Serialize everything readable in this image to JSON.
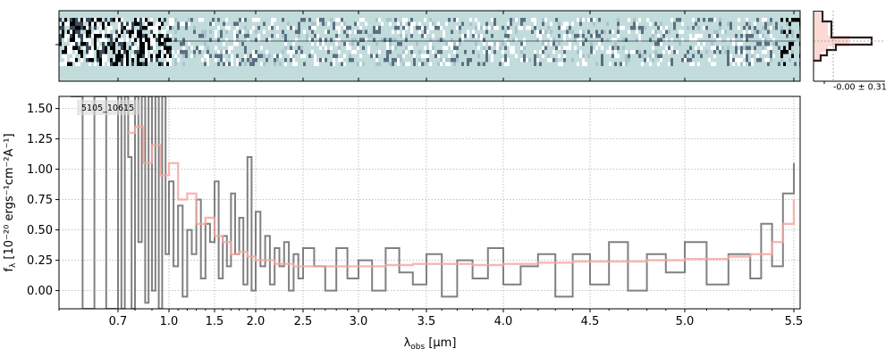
{
  "chart_data": [
    {
      "type": "heatmap",
      "panel": "2d-spectrum",
      "description_rows": 12,
      "background_color": "#c2dcdc",
      "trace_color": "#1a2a40",
      "xlim": [
        0.6,
        5.55
      ],
      "x_scale": "spectral-pixel",
      "noise_level": "high at blue end (x < 1.0 µm), moderate elsewhere"
    },
    {
      "type": "histogram",
      "panel": "profile",
      "annotation": "-0.00 ± 0.31",
      "line_color": "#2b1d1a",
      "fill_color": "#f8c0b8"
    },
    {
      "type": "line",
      "panel": "1d-spectrum",
      "legend_label": "5105_10615",
      "xlabel_main": "λ",
      "xlabel_sub": "obs",
      "xlabel_unit": " [μm]",
      "ylabel_main": "f",
      "ylabel_sub": "λ",
      "ylabel_unit": " [10⁻²⁰ ergs⁻¹cm⁻²A⁻¹]",
      "ylim": [
        -0.15,
        1.6
      ],
      "xlim": [
        0.6,
        5.55
      ],
      "grid": true,
      "x_ticks": [
        0.7,
        1.0,
        1.5,
        2.0,
        2.5,
        3.0,
        3.5,
        4.0,
        4.5,
        5.0,
        5.5
      ],
      "x_tick_labels": [
        "0.7",
        "1.0",
        "1.5",
        "2.0",
        "2.5",
        "3.0",
        "3.5",
        "4.0",
        "4.5",
        "5.0",
        "5.5"
      ],
      "y_ticks": [
        0.0,
        0.25,
        0.5,
        0.75,
        1.0,
        1.25,
        1.5
      ],
      "y_tick_labels": [
        "0.00",
        "0.25",
        "0.50",
        "0.75",
        "1.00",
        "1.25",
        "1.50"
      ],
      "series": [
        {
          "color": "#808080",
          "style": "steps",
          "x": [
            0.62,
            0.64,
            0.66,
            0.68,
            0.7,
            0.72,
            0.74,
            0.76,
            0.78,
            0.8,
            0.82,
            0.84,
            0.86,
            0.88,
            0.9,
            0.92,
            0.94,
            0.96,
            0.98,
            1.0,
            1.05,
            1.1,
            1.15,
            1.2,
            1.25,
            1.3,
            1.35,
            1.4,
            1.45,
            1.5,
            1.55,
            1.6,
            1.65,
            1.7,
            1.75,
            1.8,
            1.85,
            1.9,
            1.95,
            2.0,
            2.05,
            2.1,
            2.15,
            2.2,
            2.25,
            2.3,
            2.35,
            2.4,
            2.45,
            2.5,
            2.6,
            2.7,
            2.8,
            2.9,
            3.0,
            3.1,
            3.2,
            3.3,
            3.4,
            3.5,
            3.6,
            3.7,
            3.8,
            3.9,
            4.0,
            4.1,
            4.2,
            4.3,
            4.4,
            4.5,
            4.6,
            4.7,
            4.8,
            4.9,
            5.0,
            5.1,
            5.2,
            5.3,
            5.35,
            5.4,
            5.45,
            5.5
          ],
          "y": [
            1.6,
            -0.15,
            1.6,
            -0.15,
            1.6,
            -0.15,
            1.6,
            1.1,
            -0.15,
            1.6,
            0.4,
            1.6,
            -0.1,
            1.6,
            0.0,
            1.6,
            -0.15,
            1.6,
            0.3,
            0.9,
            0.2,
            0.7,
            -0.05,
            0.5,
            0.3,
            0.75,
            0.1,
            0.55,
            0.4,
            0.9,
            0.1,
            0.45,
            0.2,
            0.8,
            0.3,
            0.6,
            0.05,
            1.1,
            0.0,
            0.65,
            0.2,
            0.45,
            0.05,
            0.35,
            0.2,
            0.4,
            0.0,
            0.3,
            0.1,
            0.35,
            0.2,
            0.0,
            0.35,
            0.1,
            0.25,
            0.0,
            0.35,
            0.15,
            0.05,
            0.3,
            -0.05,
            0.25,
            0.1,
            0.35,
            0.05,
            0.2,
            0.3,
            -0.05,
            0.3,
            0.05,
            0.4,
            0.0,
            0.3,
            0.15,
            0.4,
            0.05,
            0.3,
            0.1,
            0.55,
            0.2,
            0.8,
            1.05
          ]
        },
        {
          "color": "#f4a6a0",
          "style": "steps",
          "x": [
            0.75,
            0.8,
            0.85,
            0.9,
            0.95,
            1.0,
            1.1,
            1.2,
            1.3,
            1.4,
            1.5,
            1.6,
            1.7,
            1.8,
            1.9,
            2.0,
            2.2,
            2.4,
            2.6,
            2.8,
            3.0,
            3.2,
            3.4,
            3.6,
            3.8,
            4.0,
            4.2,
            4.4,
            4.6,
            4.8,
            5.0,
            5.2,
            5.3,
            5.4,
            5.45,
            5.5
          ],
          "y": [
            1.3,
            1.35,
            1.05,
            1.2,
            0.95,
            1.05,
            0.75,
            0.8,
            0.55,
            0.6,
            0.45,
            0.4,
            0.3,
            0.32,
            0.28,
            0.25,
            0.22,
            0.2,
            0.2,
            0.2,
            0.2,
            0.21,
            0.22,
            0.22,
            0.21,
            0.22,
            0.23,
            0.24,
            0.24,
            0.25,
            0.26,
            0.28,
            0.3,
            0.4,
            0.55,
            0.75
          ]
        }
      ]
    }
  ]
}
